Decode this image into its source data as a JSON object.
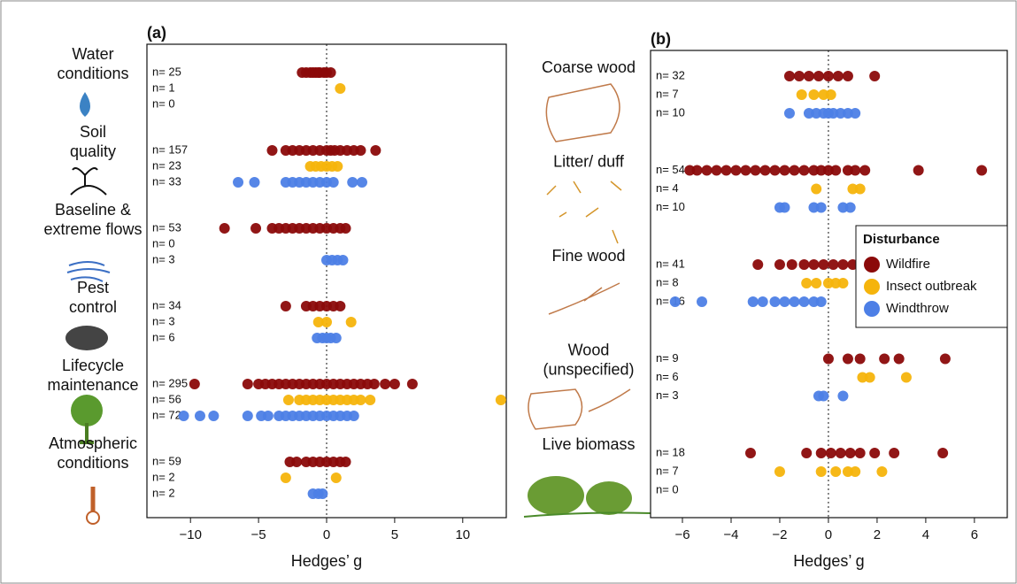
{
  "chart_data": [
    {
      "type": "dotplot",
      "panel_label": "(a)",
      "xlabel": "Hedges’ g",
      "xlim": [
        -13.2,
        13.2
      ],
      "xticks": [
        {
          "value": -10,
          "label": "−10"
        },
        {
          "value": -5,
          "label": "−5"
        },
        0,
        5,
        10
      ],
      "vline": 0,
      "colors": [
        "#8b0a0a",
        "#f5b40c",
        "#4d7fe6"
      ],
      "groups": [
        {
          "label_lines": [
            "Water",
            "conditions"
          ],
          "n_labels": [
            "n= 25",
            "n= 1",
            "n= 0"
          ],
          "x": [
            [
              -1.8,
              -1.5,
              -1.2,
              -1,
              -0.8,
              -0.6,
              -0.5,
              -0.2,
              0,
              0.3
            ],
            [
              1
            ],
            []
          ]
        },
        {
          "label_lines": [
            "Soil",
            "quality"
          ],
          "n_labels": [
            "n= 157",
            "n= 23",
            "n= 33"
          ],
          "x": [
            [
              -4,
              -3,
              -2.5,
              -2,
              -1.5,
              -1,
              -0.5,
              0,
              0.3,
              0.6,
              1,
              1.5,
              2,
              2.5,
              3.6
            ],
            [
              -1.2,
              -0.8,
              -0.4,
              0,
              0.4,
              0.8
            ],
            [
              -6.5,
              -5.3,
              -3,
              -2.5,
              -2,
              -1.5,
              -1,
              -0.5,
              0,
              0.5,
              1.9,
              2.6
            ]
          ]
        },
        {
          "label_lines": [
            "Baseline &",
            "extreme flows"
          ],
          "n_labels": [
            "n= 53",
            "n= 0",
            "n= 3"
          ],
          "x": [
            [
              -7.5,
              -5.2,
              -4,
              -3.5,
              -3,
              -2.5,
              -2,
              -1.5,
              -1,
              -0.5,
              0,
              0.5,
              1,
              1.4
            ],
            [],
            [
              0,
              0.4,
              0.8,
              1.2
            ]
          ]
        },
        {
          "label_lines": [
            "Pest",
            "control"
          ],
          "n_labels": [
            "n= 34",
            "n= 3",
            "n= 6"
          ],
          "x": [
            [
              -3,
              -1.5,
              -1,
              -0.5,
              0,
              0.5,
              1
            ],
            [
              -0.6,
              0,
              1.8
            ],
            [
              -0.7,
              -0.3,
              0,
              0.3,
              0.7
            ]
          ]
        },
        {
          "label_lines": [
            "Lifecycle",
            "maintenance"
          ],
          "n_labels": [
            "n= 295",
            "n= 56",
            "n= 72"
          ],
          "x": [
            [
              -9.7,
              -5.8,
              -5,
              -4.5,
              -4,
              -3.5,
              -3,
              -2.5,
              -2,
              -1.5,
              -1,
              -0.5,
              0,
              0.5,
              1,
              1.5,
              2,
              2.5,
              3,
              3.5,
              4.3,
              5,
              6.3
            ],
            [
              -2.8,
              -2,
              -1.5,
              -1,
              -0.5,
              0,
              0.5,
              1,
              1.5,
              2,
              2.5,
              3.2,
              12.8
            ],
            [
              -10.5,
              -9.3,
              -8.3,
              -5.8,
              -4.8,
              -4.3,
              -3.5,
              -3,
              -2.5,
              -2,
              -1.5,
              -1,
              -0.5,
              0,
              0.5,
              1,
              1.5,
              2
            ]
          ]
        },
        {
          "label_lines": [
            "Atmospheric",
            "conditions"
          ],
          "n_labels": [
            "n= 59",
            "n= 2",
            "n= 2"
          ],
          "x": [
            [
              -2.7,
              -2.2,
              -1.5,
              -1,
              -0.5,
              0,
              0.5,
              1,
              1.4
            ],
            [
              -3,
              0.7
            ],
            [
              -1,
              -0.6,
              -0.3
            ]
          ]
        }
      ]
    },
    {
      "type": "dotplot",
      "panel_label": "(b)",
      "xlabel": "Hedges’ g",
      "xlim": [
        -7.31,
        7.35
      ],
      "xticks": [
        {
          "value": -6,
          "label": "−6"
        },
        {
          "value": -4,
          "label": "−4"
        },
        {
          "value": -2,
          "label": "−2"
        },
        0,
        2,
        4,
        6
      ],
      "vline": 0,
      "legend_title": "Disturbance",
      "legend": "right",
      "series": [
        {
          "name": "Wildfire",
          "color": "#8b0a0a"
        },
        {
          "name": "Insect outbreak",
          "color": "#f5b40c"
        },
        {
          "name": "Windthrow",
          "color": "#4d7fe6"
        }
      ],
      "groups": [
        {
          "label_lines": [
            "Coarse wood"
          ],
          "n_labels": [
            "n= 32",
            "n= 7",
            "n= 10"
          ],
          "x": [
            [
              -1.6,
              -1.2,
              -0.8,
              -0.4,
              0,
              0.4,
              0.8,
              1.9
            ],
            [
              -1.1,
              -0.6,
              -0.2,
              0.1
            ],
            [
              -1.6,
              -0.8,
              -0.5,
              -0.2,
              0,
              0.2,
              0.5,
              0.8,
              1.1
            ]
          ]
        },
        {
          "label_lines": [
            "Litter/ duff"
          ],
          "n_labels": [
            "n= 54",
            "n= 4",
            "n= 10"
          ],
          "x": [
            [
              -5.7,
              -5.4,
              -5,
              -4.6,
              -4.2,
              -3.8,
              -3.4,
              -3,
              -2.6,
              -2.2,
              -1.8,
              -1.4,
              -1,
              -0.6,
              -0.3,
              0,
              0.3,
              0.8,
              1.1,
              1.5,
              3.7,
              6.3
            ],
            [
              -0.5,
              1,
              1.3
            ],
            [
              -2,
              -1.8,
              -0.6,
              -0.3,
              0.6,
              0.9
            ]
          ]
        },
        {
          "label_lines": [
            "Fine wood"
          ],
          "n_labels": [
            "n= 41",
            "n= 8",
            "n= 16"
          ],
          "x": [
            [
              -2.9,
              -2,
              -1.5,
              -1,
              -0.6,
              -0.2,
              0.2,
              0.6,
              1,
              1.4,
              1.8
            ],
            [
              -0.9,
              -0.5,
              0,
              0.3,
              0.6
            ],
            [
              -6.3,
              -5.2,
              -3.1,
              -2.7,
              -2.2,
              -1.8,
              -1.4,
              -1,
              -0.6,
              -0.3
            ]
          ]
        },
        {
          "label_lines": [
            "Wood",
            "(unspecified)"
          ],
          "n_labels": [
            "n= 9",
            "n= 6",
            "n= 3"
          ],
          "x": [
            [
              0,
              0.8,
              1.3,
              2.3,
              2.9,
              4.8
            ],
            [
              1.4,
              1.7,
              3.2
            ],
            [
              -0.4,
              -0.2,
              0.6
            ]
          ]
        },
        {
          "label_lines": [
            "Live biomass"
          ],
          "n_labels": [
            "n= 18",
            "n= 7",
            "n= 0"
          ],
          "x": [
            [
              -3.2,
              -0.9,
              -0.3,
              0.1,
              0.5,
              0.9,
              1.3,
              1.9,
              2.7,
              4.7
            ],
            [
              -2,
              -0.3,
              0.3,
              0.8,
              1.1,
              2.2
            ],
            []
          ]
        }
      ]
    }
  ]
}
